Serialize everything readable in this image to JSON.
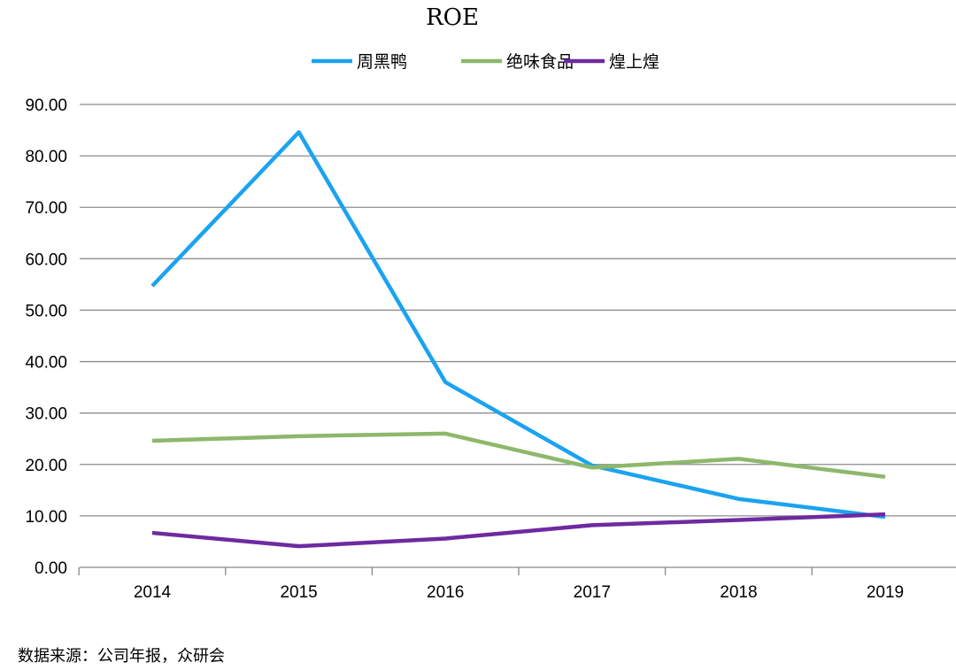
{
  "chart_data": {
    "type": "line",
    "title": "ROE",
    "categories": [
      "2014",
      "2015",
      "2016",
      "2017",
      "2018",
      "2019"
    ],
    "series": [
      {
        "name": "周黑鸭",
        "color": "#1aa3f0",
        "values": [
          54.7,
          84.6,
          36.0,
          19.8,
          13.3,
          9.8
        ]
      },
      {
        "name": "绝味食品",
        "color": "#8db86b",
        "values": [
          24.6,
          25.5,
          26.0,
          19.4,
          21.1,
          17.6
        ]
      },
      {
        "name": "煌上煌",
        "color": "#6e2aa0",
        "values": [
          6.7,
          4.1,
          5.6,
          8.2,
          9.2,
          10.3
        ]
      }
    ],
    "yticks": [
      "0.00",
      "10.00",
      "20.00",
      "30.00",
      "40.00",
      "50.00",
      "60.00",
      "70.00",
      "80.00",
      "90.00"
    ],
    "ylim": [
      0,
      90
    ],
    "grid": true,
    "legend_position": "top"
  },
  "source": "数据来源：公司年报，众研会"
}
